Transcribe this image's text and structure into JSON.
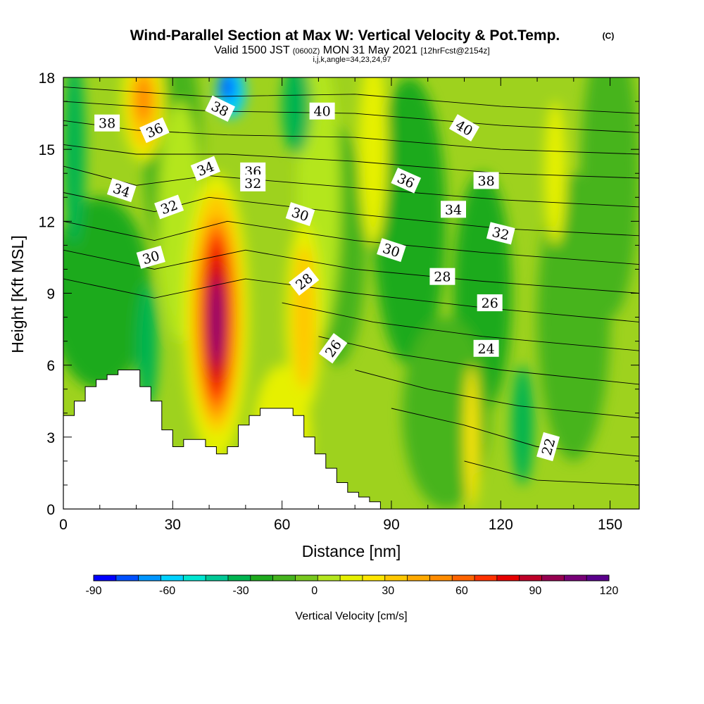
{
  "title": {
    "main": "Wind-Parallel Section at Max W: Vertical Velocity & Pot.Temp.",
    "copyright": "(C)",
    "valid_prefix": "Valid 1500 JST",
    "utc": "(0600Z)",
    "valid_date": "MON 31 May 2021",
    "forecast": "[12hrFcst@2154z]",
    "indices": "i,j,k,angle=34,23,24,97"
  },
  "chart_data": {
    "type": "heatmap",
    "xlabel": "Distance [nm]",
    "ylabel": "Height [Kft MSL]",
    "xlim": [
      0,
      158
    ],
    "ylim": [
      0,
      18
    ],
    "xticks": [
      0,
      30,
      60,
      90,
      120,
      150
    ],
    "yticks": [
      0,
      3,
      6,
      9,
      12,
      15,
      18
    ],
    "colorbar": {
      "label": "Vertical Velocity [cm/s]",
      "min": -90,
      "max": 120,
      "step": 10,
      "tick_values": [
        -90,
        -60,
        -30,
        0,
        30,
        60,
        90,
        120
      ],
      "tick_labels": [
        "-90",
        "-60",
        "-30",
        "0",
        "30",
        "60",
        "90",
        "120"
      ],
      "colors": [
        "#0000ff",
        "#0050ff",
        "#0096ff",
        "#00d2ff",
        "#00e6d2",
        "#00c896",
        "#00b450",
        "#1eaa1e",
        "#46b41e",
        "#78c81e",
        "#b4e61e",
        "#e6f000",
        "#ffe600",
        "#ffc800",
        "#ffaa00",
        "#ff8c00",
        "#ff6400",
        "#ff3200",
        "#e60000",
        "#be0028",
        "#960050",
        "#780078",
        "#5a008c"
      ]
    },
    "vertical_velocity_field": {
      "units": "cm/s",
      "regions": [
        {
          "feature": "main updraft core",
          "distance": 42,
          "height": 8,
          "value": 120
        },
        {
          "feature": "upper updraft",
          "distance": 22,
          "height": 17,
          "value": 60
        },
        {
          "feature": "secondary updraft",
          "distance": 66,
          "height": 8,
          "value": 40
        },
        {
          "feature": "downdraft near tropopause",
          "distance": 46,
          "height": 17.5,
          "value": -70
        },
        {
          "feature": "downdraft upper left",
          "distance": 3,
          "height": 15,
          "value": -30
        },
        {
          "feature": "downdraft west of core",
          "distance": 23,
          "height": 6.5,
          "value": -30
        },
        {
          "feature": "downdraft upper",
          "distance": 64,
          "height": 17,
          "value": -30
        },
        {
          "feature": "downdraft low level",
          "distance": 126,
          "height": 3.5,
          "value": -30
        }
      ]
    },
    "potential_temperature_contours": {
      "units": "degC",
      "labels": [
        {
          "value": "38",
          "distance": 12,
          "height": 16.1
        },
        {
          "value": "36",
          "distance": 25,
          "height": 15.8
        },
        {
          "value": "38",
          "distance": 43,
          "height": 16.7
        },
        {
          "value": "40",
          "distance": 71,
          "height": 16.6
        },
        {
          "value": "40",
          "distance": 110,
          "height": 15.9
        },
        {
          "value": "36",
          "distance": 52,
          "height": 14.1
        },
        {
          "value": "34",
          "distance": 39,
          "height": 14.2
        },
        {
          "value": "32",
          "distance": 52,
          "height": 13.6
        },
        {
          "value": "34",
          "distance": 16,
          "height": 13.3
        },
        {
          "value": "32",
          "distance": 29,
          "height": 12.6
        },
        {
          "value": "30",
          "distance": 65,
          "height": 12.3
        },
        {
          "value": "36",
          "distance": 94,
          "height": 13.7
        },
        {
          "value": "38",
          "distance": 116,
          "height": 13.7
        },
        {
          "value": "34",
          "distance": 107,
          "height": 12.5
        },
        {
          "value": "32",
          "distance": 120,
          "height": 11.5
        },
        {
          "value": "30",
          "distance": 24,
          "height": 10.5
        },
        {
          "value": "30",
          "distance": 90,
          "height": 10.8
        },
        {
          "value": "28",
          "distance": 66,
          "height": 9.5
        },
        {
          "value": "28",
          "distance": 104,
          "height": 9.7
        },
        {
          "value": "26",
          "distance": 117,
          "height": 8.6
        },
        {
          "value": "26",
          "distance": 74,
          "height": 6.7
        },
        {
          "value": "24",
          "distance": 116,
          "height": 6.7
        },
        {
          "value": "22",
          "distance": 133,
          "height": 2.6
        }
      ]
    },
    "terrain": {
      "distance": [
        0,
        3,
        3,
        6,
        6,
        9,
        9,
        12,
        12,
        15,
        15,
        21,
        21,
        24,
        24,
        27,
        27,
        30,
        30,
        33,
        33,
        39,
        39,
        42,
        42,
        45,
        45,
        48,
        48,
        51,
        51,
        54,
        54,
        57,
        57,
        63,
        63,
        66,
        66,
        69,
        69,
        72,
        72,
        75,
        75,
        78,
        78,
        81,
        81,
        84,
        84,
        87,
        87
      ],
      "height": [
        3.9,
        3.9,
        4.5,
        4.5,
        5.1,
        5.1,
        5.4,
        5.4,
        5.6,
        5.6,
        5.8,
        5.8,
        5.1,
        5.1,
        4.5,
        4.5,
        3.3,
        3.3,
        2.6,
        2.6,
        2.9,
        2.9,
        2.6,
        2.6,
        2.3,
        2.3,
        2.6,
        2.6,
        3.5,
        3.5,
        3.9,
        3.9,
        4.2,
        4.2,
        4.2,
        4.2,
        3.9,
        3.9,
        3.0,
        3.0,
        2.3,
        2.3,
        1.7,
        1.7,
        1.1,
        1.1,
        0.7,
        0.7,
        0.5,
        0.5,
        0.3,
        0.3,
        0.0
      ]
    }
  }
}
